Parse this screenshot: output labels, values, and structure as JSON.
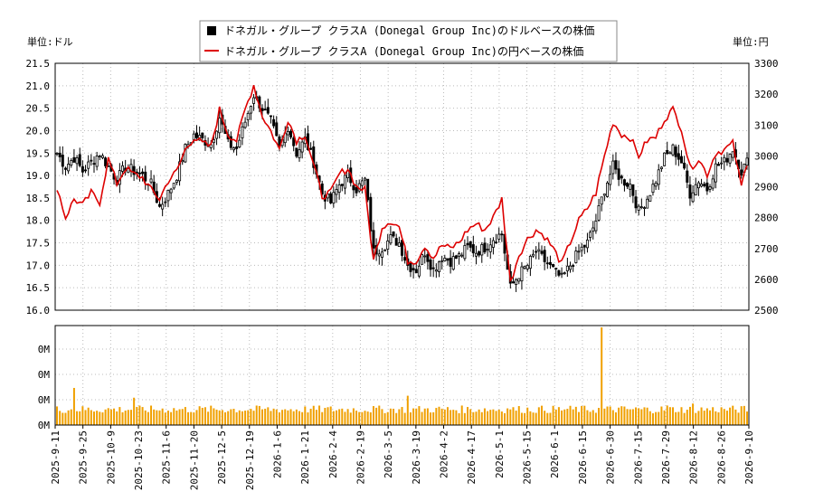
{
  "chart_data": [
    {
      "type": "candlestick_line",
      "left_unit_label": "単位:ドル",
      "right_unit_label": "単位:円",
      "legend": [
        {
          "name": "ドネガル・グループ クラスA (Donegal Group Inc)のドルベースの株価",
          "color": "#000000",
          "marker": "square"
        },
        {
          "name": "ドネガル・グループ クラスA (Donegal Group Inc)の円ベースの株価",
          "color": "#dd0000",
          "marker": "line"
        }
      ],
      "y_left": {
        "min": 16.0,
        "max": 21.5,
        "ticks": [
          "16.0",
          "16.5",
          "17.0",
          "17.5",
          "18.0",
          "18.5",
          "19.0",
          "19.5",
          "20.0",
          "20.5",
          "21.0",
          "21.5"
        ]
      },
      "y_right": {
        "min": 2500,
        "max": 3300,
        "ticks": [
          "2500",
          "2600",
          "2700",
          "2800",
          "2900",
          "3000",
          "3100",
          "3200",
          "3300"
        ]
      },
      "x_ticks": [
        "2025-9-11",
        "2025-9-25",
        "2025-10-9",
        "2025-10-23",
        "2025-11-6",
        "2025-11-20",
        "2025-12-5",
        "2025-12-19",
        "2026-1-6",
        "2026-1-21",
        "2026-2-4",
        "2026-2-19",
        "2026-3-5",
        "2026-3-19",
        "2026-4-2",
        "2026-4-17",
        "2026-5-1",
        "2026-5-15",
        "2026-6-1",
        "2026-6-15",
        "2026-6-30",
        "2026-7-15",
        "2026-7-29",
        "2026-8-12",
        "2026-8-26",
        "2026-9-10"
      ],
      "usd_close_keypoints": [
        [
          0,
          19.5
        ],
        [
          3,
          19.2
        ],
        [
          6,
          19.4
        ],
        [
          9,
          19.1
        ],
        [
          12,
          19.3
        ],
        [
          15,
          19.5
        ],
        [
          18,
          19.2
        ],
        [
          21,
          18.9
        ],
        [
          24,
          19.2
        ],
        [
          27,
          19.1
        ],
        [
          30,
          19.0
        ],
        [
          33,
          18.8
        ],
        [
          36,
          18.3
        ],
        [
          39,
          18.6
        ],
        [
          42,
          19.0
        ],
        [
          45,
          19.6
        ],
        [
          48,
          19.9
        ],
        [
          51,
          19.8
        ],
        [
          54,
          19.7
        ],
        [
          57,
          20.3
        ],
        [
          60,
          19.7
        ],
        [
          63,
          19.6
        ],
        [
          66,
          20.2
        ],
        [
          69,
          20.8
        ],
        [
          72,
          20.5
        ],
        [
          75,
          20.2
        ],
        [
          78,
          19.6
        ],
        [
          81,
          20.1
        ],
        [
          84,
          19.5
        ],
        [
          87,
          19.8
        ],
        [
          90,
          19.3
        ],
        [
          93,
          18.6
        ],
        [
          96,
          18.4
        ],
        [
          99,
          18.8
        ],
        [
          102,
          19.0
        ],
        [
          105,
          18.7
        ],
        [
          108,
          18.9
        ],
        [
          111,
          17.3
        ],
        [
          114,
          17.4
        ],
        [
          117,
          17.6
        ],
        [
          120,
          17.5
        ],
        [
          123,
          17.0
        ],
        [
          126,
          16.9
        ],
        [
          129,
          17.3
        ],
        [
          132,
          16.9
        ],
        [
          135,
          17.2
        ],
        [
          138,
          17.1
        ],
        [
          141,
          17.2
        ],
        [
          144,
          17.4
        ],
        [
          147,
          17.3
        ],
        [
          150,
          17.4
        ],
        [
          153,
          17.6
        ],
        [
          156,
          17.7
        ],
        [
          159,
          16.5
        ],
        [
          162,
          16.8
        ],
        [
          165,
          17.0
        ],
        [
          168,
          17.3
        ],
        [
          171,
          17.1
        ],
        [
          174,
          16.9
        ],
        [
          177,
          16.7
        ],
        [
          180,
          17.0
        ],
        [
          183,
          17.3
        ],
        [
          186,
          17.5
        ],
        [
          189,
          18.0
        ],
        [
          192,
          18.7
        ],
        [
          195,
          19.2
        ],
        [
          198,
          18.9
        ],
        [
          201,
          18.8
        ],
        [
          204,
          18.2
        ],
        [
          207,
          18.5
        ],
        [
          210,
          18.9
        ],
        [
          213,
          19.4
        ],
        [
          216,
          19.6
        ],
        [
          219,
          19.3
        ],
        [
          222,
          18.6
        ],
        [
          225,
          18.9
        ],
        [
          228,
          18.7
        ],
        [
          231,
          19.2
        ],
        [
          234,
          19.3
        ],
        [
          237,
          19.6
        ],
        [
          240,
          19.1
        ],
        [
          242,
          19.3
        ]
      ],
      "jpy_close_keypoints": [
        [
          0,
          2900
        ],
        [
          3,
          2800
        ],
        [
          6,
          2860
        ],
        [
          9,
          2840
        ],
        [
          12,
          2880
        ],
        [
          15,
          2850
        ],
        [
          18,
          2990
        ],
        [
          21,
          2910
        ],
        [
          24,
          2960
        ],
        [
          27,
          2940
        ],
        [
          30,
          2930
        ],
        [
          33,
          2890
        ],
        [
          36,
          2860
        ],
        [
          39,
          2920
        ],
        [
          42,
          2950
        ],
        [
          45,
          3020
        ],
        [
          48,
          3060
        ],
        [
          51,
          3040
        ],
        [
          54,
          3030
        ],
        [
          57,
          3150
        ],
        [
          60,
          3070
        ],
        [
          63,
          3050
        ],
        [
          66,
          3150
        ],
        [
          69,
          3230
        ],
        [
          72,
          3130
        ],
        [
          75,
          3080
        ],
        [
          78,
          3020
        ],
        [
          81,
          3120
        ],
        [
          84,
          3050
        ],
        [
          87,
          3070
        ],
        [
          90,
          2970
        ],
        [
          93,
          2870
        ],
        [
          96,
          2880
        ],
        [
          99,
          2940
        ],
        [
          102,
          2960
        ],
        [
          105,
          2900
        ],
        [
          108,
          2890
        ],
        [
          111,
          2660
        ],
        [
          114,
          2770
        ],
        [
          117,
          2790
        ],
        [
          120,
          2770
        ],
        [
          123,
          2660
        ],
        [
          126,
          2660
        ],
        [
          129,
          2710
        ],
        [
          132,
          2670
        ],
        [
          135,
          2710
        ],
        [
          138,
          2700
        ],
        [
          141,
          2720
        ],
        [
          144,
          2760
        ],
        [
          147,
          2780
        ],
        [
          150,
          2760
        ],
        [
          153,
          2800
        ],
        [
          156,
          2860
        ],
        [
          159,
          2590
        ],
        [
          162,
          2680
        ],
        [
          165,
          2730
        ],
        [
          168,
          2760
        ],
        [
          171,
          2740
        ],
        [
          174,
          2700
        ],
        [
          177,
          2650
        ],
        [
          180,
          2720
        ],
        [
          183,
          2790
        ],
        [
          186,
          2830
        ],
        [
          189,
          2880
        ],
        [
          192,
          3000
        ],
        [
          195,
          3110
        ],
        [
          198,
          3070
        ],
        [
          201,
          3060
        ],
        [
          204,
          3000
        ],
        [
          207,
          3050
        ],
        [
          210,
          3060
        ],
        [
          213,
          3120
        ],
        [
          216,
          3150
        ],
        [
          219,
          3090
        ],
        [
          222,
          2960
        ],
        [
          225,
          2990
        ],
        [
          228,
          2940
        ],
        [
          231,
          3010
        ],
        [
          234,
          3020
        ],
        [
          237,
          3040
        ],
        [
          240,
          2900
        ],
        [
          242,
          2980
        ]
      ],
      "trading_days": 243
    },
    {
      "type": "bar",
      "name": "volume",
      "y_ticks": [
        "0M",
        "0M",
        "0M",
        "0M"
      ],
      "bar_color": "#f0a000",
      "base_level": 0.12,
      "spikes": [
        [
          6,
          0.38
        ],
        [
          27,
          0.28
        ],
        [
          123,
          0.3
        ],
        [
          159,
          0.16
        ],
        [
          191,
          1.0
        ],
        [
          214,
          0.2
        ],
        [
          223,
          0.22
        ],
        [
          229,
          0.15
        ]
      ]
    }
  ]
}
